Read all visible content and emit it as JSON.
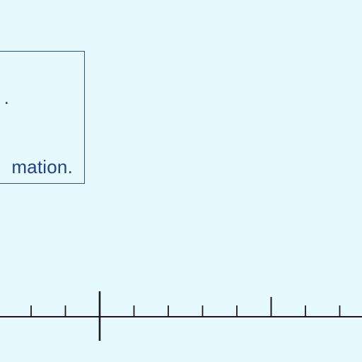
{
  "info_box": {
    "line_1": ".",
    "line_2": "mation."
  },
  "ruler": {
    "tick_count": 11,
    "major_tick_index": 2,
    "medium_tick_index": 7
  },
  "colors": {
    "background": "#e6f9fe",
    "text": "#25408a",
    "border": "#2f4f8f",
    "ruler": "#1a1a1a"
  }
}
